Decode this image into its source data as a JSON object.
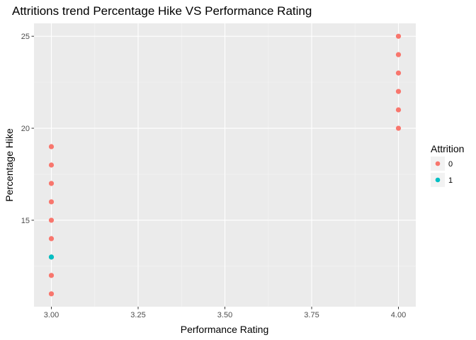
{
  "chart_data": {
    "type": "scatter",
    "title": "Attritions trend Percentage Hike VS Performance Rating",
    "xlabel": "Performance Rating",
    "ylabel": "Percentage Hike",
    "xlim": [
      2.95,
      4.05
    ],
    "ylim": [
      10.3,
      25.7
    ],
    "x_ticks": [
      3.0,
      3.25,
      3.5,
      3.75,
      4.0
    ],
    "x_tick_labels": [
      "3.00",
      "3.25",
      "3.50",
      "3.75",
      "4.00"
    ],
    "y_ticks": [
      15,
      20,
      25
    ],
    "y_tick_labels": [
      "15",
      "20",
      "25"
    ],
    "grid": true,
    "legend": {
      "title": "Attrition",
      "position": "right",
      "entries": [
        {
          "label": "0",
          "color": "#F8766D"
        },
        {
          "label": "1",
          "color": "#00BFC4"
        }
      ]
    },
    "series": [
      {
        "name": "0",
        "color": "#F8766D",
        "points": [
          [
            3,
            11
          ],
          [
            3,
            12
          ],
          [
            3,
            13
          ],
          [
            3,
            14
          ],
          [
            3,
            15
          ],
          [
            3,
            16
          ],
          [
            3,
            17
          ],
          [
            3,
            18
          ],
          [
            3,
            19
          ],
          [
            4,
            20
          ],
          [
            4,
            21
          ],
          [
            4,
            22
          ],
          [
            4,
            23
          ],
          [
            4,
            24
          ],
          [
            4,
            25
          ]
        ]
      },
      {
        "name": "1",
        "color": "#00BFC4",
        "points": [
          [
            3,
            13
          ]
        ]
      }
    ]
  }
}
